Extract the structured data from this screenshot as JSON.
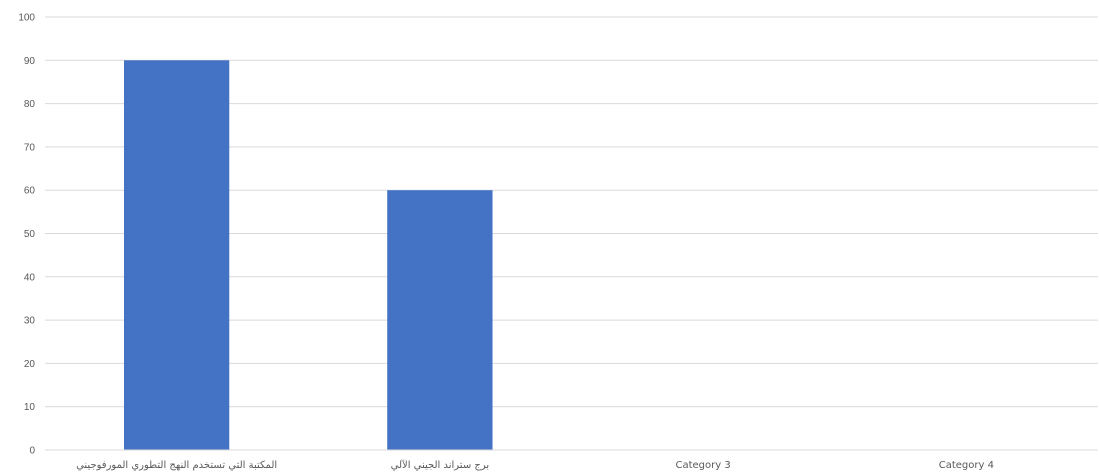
{
  "chart_data": {
    "type": "bar",
    "title": "",
    "xlabel": "",
    "ylabel": "",
    "categories": [
      "المكتبة التي تستخدم النهج التطوري المورفوجيني",
      "برج ستراند الجيني الآلي",
      "Category 3",
      "Category 4"
    ],
    "series": [
      {
        "values": [
          90,
          60,
          null,
          null
        ]
      }
    ],
    "ylim": [
      0,
      100
    ],
    "yticks": [
      0,
      10,
      20,
      30,
      40,
      50,
      60,
      70,
      80,
      90,
      100
    ],
    "grid": true,
    "legend": "none",
    "colors": {
      "bar": "#4472C4",
      "grid": "#D9D9D9",
      "text": "#595959"
    }
  }
}
